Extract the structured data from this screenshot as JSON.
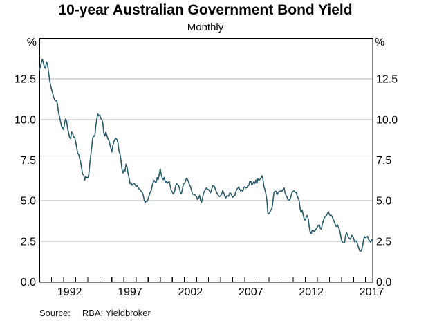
{
  "header": {
    "title": "10-year Australian Government Bond Yield",
    "subtitle": "Monthly"
  },
  "y_axis": {
    "unit_left": "%",
    "unit_right": "%",
    "tick_labels": [
      "0.0",
      "2.5",
      "5.0",
      "7.5",
      "10.0",
      "12.5"
    ]
  },
  "x_axis": {
    "labels": [
      "1992",
      "1997",
      "2002",
      "2007",
      "2012",
      "2017"
    ],
    "minor_tick_every_years": 1
  },
  "footer": {
    "source_label": "Source:",
    "source_text": "RBA; Yieldbroker"
  },
  "colors": {
    "line": "#265a69",
    "grid": "#b3b3b3",
    "axis": "#000000"
  },
  "chart_data": {
    "type": "line",
    "title": "10-year Australian Government Bond Yield",
    "subtitle": "Monthly",
    "unit": "%",
    "ylim": [
      0,
      15
    ],
    "y_gridlines": [
      2.5,
      5.0,
      7.5,
      10.0,
      12.5
    ],
    "y_tick_values": [
      0.0,
      2.5,
      5.0,
      7.5,
      10.0,
      12.5
    ],
    "x_start_year": 1990,
    "x_step_months": 1,
    "x_labeled_years": [
      1992,
      1997,
      2002,
      2007,
      2012,
      2017
    ],
    "grid": "horizontal-only",
    "legend": "none",
    "source": "RBA; Yieldbroker",
    "series": [
      {
        "name": "10-year Australian Government Bond Yield",
        "color": "#265a69",
        "values": [
          13.05,
          13.26,
          13.53,
          13.71,
          13.48,
          13.21,
          13.14,
          13.54,
          13.43,
          12.96,
          12.48,
          12.14,
          11.88,
          11.67,
          11.38,
          11.25,
          11.16,
          11.19,
          10.92,
          10.43,
          10.16,
          9.86,
          9.58,
          9.5,
          9.38,
          9.77,
          10.04,
          9.89,
          9.47,
          9.17,
          8.89,
          8.83,
          9.23,
          9.14,
          8.9,
          8.92,
          8.63,
          8.27,
          7.92,
          7.86,
          7.59,
          7.36,
          6.96,
          6.62,
          6.61,
          6.28,
          6.49,
          6.42,
          6.4,
          6.6,
          7.27,
          7.78,
          8.32,
          8.88,
          9.0,
          8.96,
          9.61,
          10.03,
          10.35,
          10.22,
          10.28,
          10.08,
          10.0,
          9.76,
          9.15,
          8.99,
          9.21,
          9.02,
          8.82,
          8.71,
          8.47,
          8.22,
          8.01,
          8.41,
          8.64,
          8.78,
          8.83,
          8.76,
          8.57,
          8.06,
          7.89,
          7.49,
          6.94,
          6.71,
          6.88,
          6.83,
          7.24,
          7.09,
          6.69,
          6.41,
          6.05,
          6.12,
          5.95,
          6.02,
          6.07,
          5.99,
          5.87,
          5.93,
          5.82,
          5.72,
          5.69,
          5.58,
          5.52,
          5.37,
          5.06,
          4.88,
          4.98,
          4.96,
          5.12,
          5.33,
          5.52,
          5.61,
          5.92,
          6.14,
          6.25,
          6.15,
          6.15,
          6.42,
          6.31,
          6.63,
          6.95,
          6.62,
          6.39,
          6.3,
          6.44,
          6.15,
          6.19,
          6.08,
          6.15,
          6.18,
          5.88,
          5.62,
          5.54,
          5.41,
          5.53,
          5.82,
          6.04,
          6.02,
          5.95,
          5.81,
          5.5,
          5.43,
          5.71,
          6.04,
          6.07,
          6.19,
          6.38,
          6.33,
          6.18,
          5.98,
          5.87,
          5.66,
          5.41,
          5.38,
          5.4,
          5.31,
          5.25,
          5.08,
          5.15,
          5.33,
          5.03,
          4.89,
          5.17,
          5.46,
          5.6,
          5.7,
          5.79,
          5.71,
          5.68,
          5.59,
          5.49,
          5.7,
          5.92,
          5.91,
          5.86,
          5.66,
          5.52,
          5.39,
          5.29,
          5.26,
          5.31,
          5.4,
          5.63,
          5.5,
          5.31,
          5.15,
          5.29,
          5.29,
          5.27,
          5.48,
          5.46,
          5.33,
          5.21,
          5.28,
          5.31,
          5.54,
          5.69,
          5.77,
          5.85,
          5.69,
          5.59,
          5.67,
          5.58,
          5.82,
          5.86,
          5.79,
          5.8,
          5.92,
          5.94,
          6.21,
          6.19,
          5.96,
          6.07,
          6.17,
          6.06,
          6.28,
          6.07,
          6.36,
          6.26,
          6.31,
          6.4,
          6.54,
          6.32,
          5.87,
          5.68,
          5.39,
          4.97,
          4.18,
          4.21,
          4.32,
          4.42,
          4.54,
          5.03,
          5.52,
          5.59,
          5.58,
          5.37,
          5.49,
          5.58,
          5.58,
          5.61,
          5.59,
          5.69,
          5.79,
          5.49,
          5.31,
          5.22,
          5.03,
          5.03,
          5.09,
          5.31,
          5.53,
          5.58,
          5.62,
          5.51,
          5.52,
          5.29,
          5.16,
          4.99,
          4.47,
          4.28,
          4.42,
          4.1,
          3.88,
          3.8,
          3.99,
          4.09,
          3.87,
          3.38,
          3.0,
          2.98,
          3.19,
          3.17,
          3.09,
          3.18,
          3.27,
          3.37,
          3.47,
          3.5,
          3.28,
          3.25,
          3.57,
          3.76,
          3.96,
          4.02,
          4.08,
          4.2,
          4.32,
          4.15,
          4.07,
          4.1,
          3.98,
          3.81,
          3.68,
          3.49,
          3.4,
          3.51,
          3.37,
          3.21,
          2.9,
          2.59,
          2.43,
          2.4,
          2.4,
          2.82,
          3.02,
          2.9,
          2.72,
          2.68,
          2.62,
          2.87,
          2.82,
          2.7,
          2.46,
          2.51,
          2.51,
          2.3,
          2.12,
          1.92,
          1.88,
          1.97,
          2.24,
          2.61,
          2.78,
          2.72,
          2.77,
          2.8,
          2.6,
          2.52,
          2.43,
          2.6,
          2.58
        ]
      }
    ]
  }
}
